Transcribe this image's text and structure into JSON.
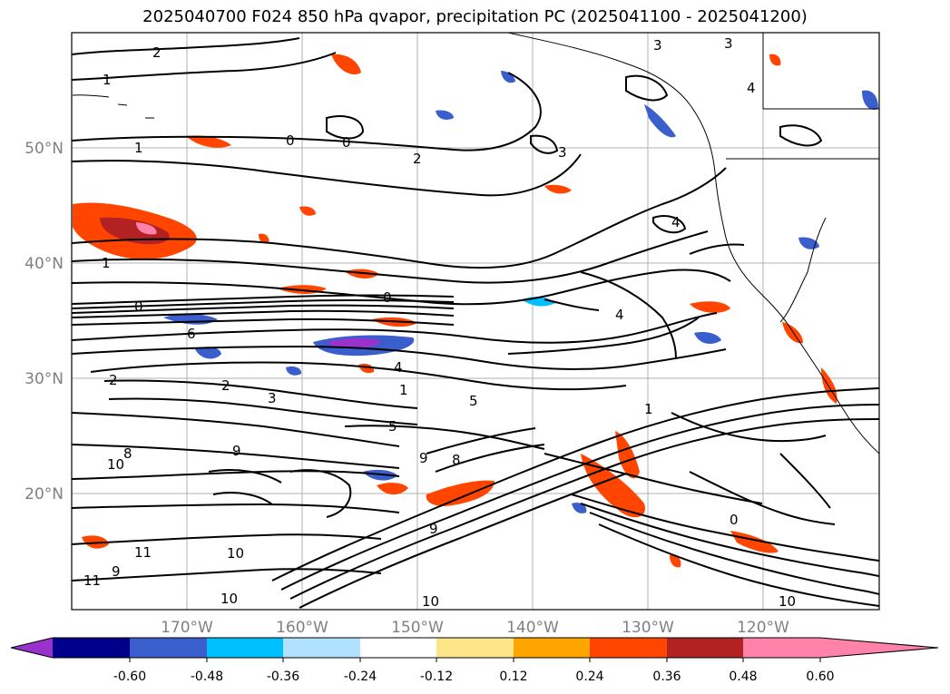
{
  "title": "2025040700 F024 850 hPa qvapor, precipitation PC (2025041100 - 2025041200)",
  "map": {
    "lat_ticks": [
      "50°N",
      "40°N",
      "30°N",
      "20°N"
    ],
    "lon_ticks": [
      "170°W",
      "160°W",
      "150°W",
      "140°W",
      "130°W",
      "120°W"
    ],
    "contour_labels": [
      {
        "text": "2"
      },
      {
        "text": "1"
      },
      {
        "text": "1"
      },
      {
        "text": "0"
      },
      {
        "text": "0"
      },
      {
        "text": "2"
      },
      {
        "text": "3"
      },
      {
        "text": "4"
      },
      {
        "text": "1"
      },
      {
        "text": "0"
      },
      {
        "text": "0"
      },
      {
        "text": "6"
      },
      {
        "text": "2"
      },
      {
        "text": "2"
      },
      {
        "text": "3"
      },
      {
        "text": "4"
      },
      {
        "text": "1"
      },
      {
        "text": "5"
      },
      {
        "text": "5"
      },
      {
        "text": "4"
      },
      {
        "text": "9"
      },
      {
        "text": "8"
      },
      {
        "text": "9"
      },
      {
        "text": "8"
      },
      {
        "text": "9"
      },
      {
        "text": "10"
      },
      {
        "text": "11"
      },
      {
        "text": "11"
      },
      {
        "text": "9"
      },
      {
        "text": "10"
      },
      {
        "text": "10"
      },
      {
        "text": "10"
      },
      {
        "text": "10"
      },
      {
        "text": "0"
      },
      {
        "text": "1"
      },
      {
        "text": "3"
      },
      {
        "text": "4"
      },
      {
        "text": "3"
      }
    ]
  },
  "colorbar": {
    "colors": [
      "#9932cc",
      "#00008b",
      "#3a5fcd",
      "#00bfff",
      "#b0e2ff",
      "#ffffff",
      "#fde68a",
      "#ffa500",
      "#ff4500",
      "#b22222",
      "#ff82ab"
    ],
    "labels": [
      "-0.60",
      "-0.48",
      "-0.36",
      "-0.24",
      "-0.12",
      "0.12",
      "0.24",
      "0.36",
      "0.48",
      "0.60"
    ]
  }
}
